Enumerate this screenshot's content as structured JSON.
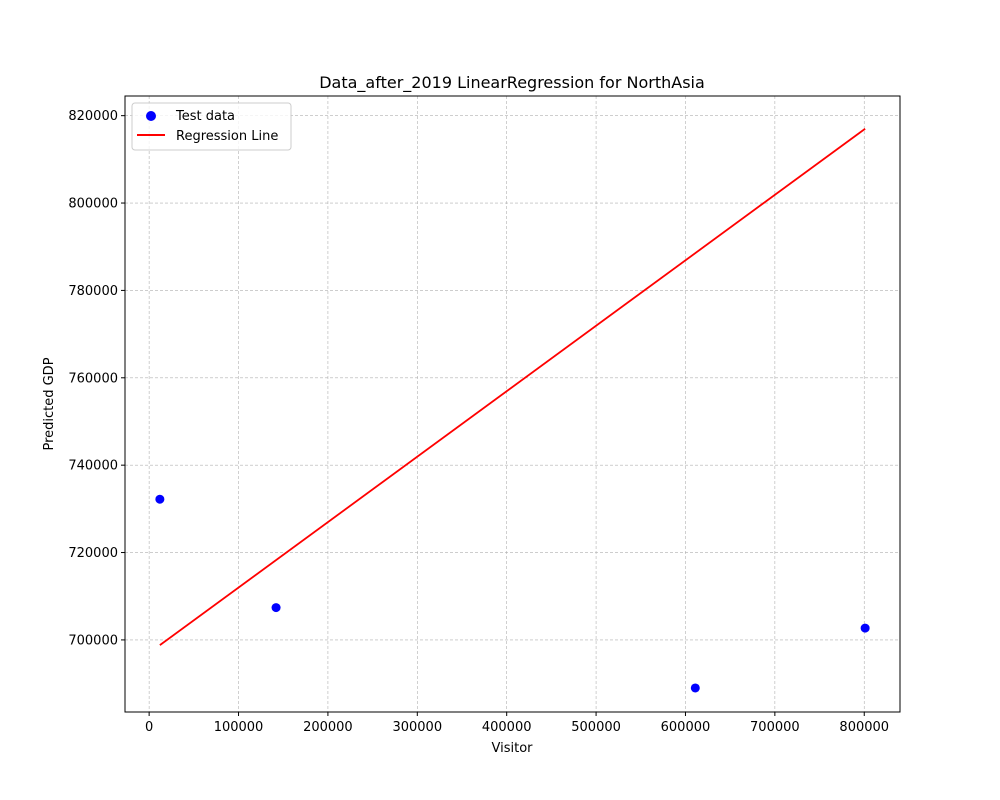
{
  "chart_data": {
    "type": "scatter",
    "title": "Data_after_2019 LinearRegression for NorthAsia",
    "xlabel": "Visitor",
    "ylabel": "Predicted GDP",
    "xlim": [
      -27000,
      840000
    ],
    "ylim": [
      683500,
      824500
    ],
    "xticks": [
      0,
      100000,
      200000,
      300000,
      400000,
      500000,
      600000,
      700000,
      800000
    ],
    "xtick_labels": [
      "0",
      "100000",
      "200000",
      "300000",
      "400000",
      "500000",
      "600000",
      "700000",
      "800000"
    ],
    "yticks": [
      700000,
      720000,
      740000,
      760000,
      780000,
      800000,
      820000
    ],
    "ytick_labels": [
      "700000",
      "720000",
      "740000",
      "760000",
      "780000",
      "800000",
      "820000"
    ],
    "grid": true,
    "legend_position": "top-left",
    "series": [
      {
        "name": "Test data",
        "kind": "scatter",
        "color": "#0000ff",
        "points": [
          {
            "x": 12000,
            "y": 732200
          },
          {
            "x": 142000,
            "y": 707400
          },
          {
            "x": 611000,
            "y": 689000
          },
          {
            "x": 801000,
            "y": 702700
          }
        ]
      },
      {
        "name": "Regression Line",
        "kind": "line",
        "color": "#ff0000",
        "points": [
          {
            "x": 12000,
            "y": 698800
          },
          {
            "x": 801000,
            "y": 817000
          }
        ]
      }
    ]
  }
}
